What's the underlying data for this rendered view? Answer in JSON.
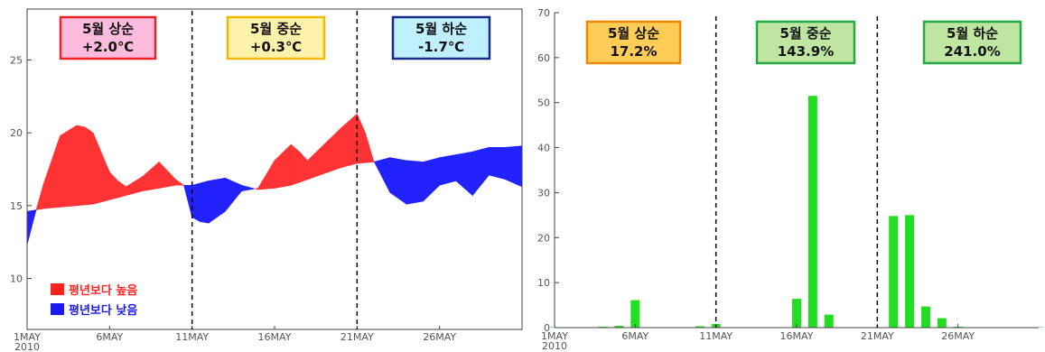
{
  "colors": {
    "above": "#ff3333",
    "below": "#2222ff",
    "bar": "#22dd22",
    "grid": "#000000"
  },
  "chart_data": [
    {
      "type": "area",
      "title": "",
      "xlabel": "",
      "ylabel": "",
      "ylim": [
        6.5,
        28.5
      ],
      "yticks": [
        10,
        15,
        20,
        25
      ],
      "xticks": [
        "1MAY",
        "6MAY",
        "11MAY",
        "16MAY",
        "21MAY",
        "26MAY"
      ],
      "year_label": "2010",
      "day_range": [
        1,
        31
      ],
      "series": [
        {
          "role": "observed",
          "x": [
            1,
            1.5,
            2,
            3,
            4,
            4.5,
            5,
            6,
            6.5,
            7,
            8,
            9,
            10,
            10.5,
            11,
            11.5,
            12,
            13,
            14,
            15,
            16,
            17,
            17.5,
            18,
            19,
            20,
            21,
            21.5,
            22,
            23,
            24,
            25,
            26,
            27,
            28,
            29,
            30,
            31
          ],
          "values": [
            12.3,
            14.5,
            16.5,
            19.8,
            20.5,
            20.4,
            20.0,
            17.3,
            16.7,
            16.3,
            17.0,
            18.0,
            16.8,
            16.4,
            14.2,
            13.9,
            13.8,
            14.6,
            16.0,
            16.2,
            18.1,
            19.2,
            18.7,
            18.1,
            19.2,
            20.3,
            21.3,
            20.0,
            18.1,
            15.9,
            15.1,
            15.3,
            16.4,
            16.7,
            15.7,
            17.1,
            16.8,
            16.3
          ]
        },
        {
          "role": "normal",
          "x": [
            1,
            2,
            3,
            4,
            5,
            6,
            7,
            8,
            9,
            10,
            11,
            12,
            13,
            14,
            15,
            16,
            17,
            18,
            19,
            20,
            21,
            22,
            23,
            24,
            25,
            26,
            27,
            28,
            29,
            30,
            31
          ],
          "values": [
            14.6,
            14.8,
            14.9,
            15.0,
            15.1,
            15.4,
            15.7,
            16.0,
            16.2,
            16.4,
            16.4,
            16.7,
            16.9,
            16.4,
            16.1,
            16.2,
            16.4,
            16.8,
            17.2,
            17.6,
            17.9,
            18.0,
            18.3,
            18.1,
            18.0,
            18.3,
            18.5,
            18.7,
            19.0,
            19.0,
            19.1
          ]
        }
      ],
      "dividers": [
        11,
        21
      ],
      "periods": [
        {
          "label": "5월 상순",
          "value": "+2.0℃",
          "bg": "#ffbbdd",
          "border": "#ee2222"
        },
        {
          "label": "5월 중순",
          "value": "+0.3℃",
          "bg": "#fff2aa",
          "border": "#f2b800"
        },
        {
          "label": "5월 하순",
          "value": "-1.7℃",
          "bg": "#bff0ff",
          "border": "#1a2a88"
        }
      ],
      "legend": [
        {
          "text": "평년보다 높음",
          "color": "#ff2222"
        },
        {
          "text": "평년보다 낮음",
          "color": "#1a1aee"
        }
      ]
    },
    {
      "type": "bar",
      "title": "",
      "xlabel": "",
      "ylabel": "",
      "ylim": [
        0,
        70
      ],
      "yticks": [
        0,
        10,
        20,
        30,
        40,
        50,
        60,
        70
      ],
      "xticks": [
        "1MAY",
        "6MAY",
        "11MAY",
        "16MAY",
        "21MAY",
        "26MAY"
      ],
      "year_label": "2010",
      "day_range": [
        1,
        31
      ],
      "x": [
        1,
        2,
        3,
        4,
        5,
        6,
        7,
        8,
        9,
        10,
        11,
        12,
        13,
        14,
        15,
        16,
        17,
        18,
        19,
        20,
        21,
        22,
        23,
        24,
        25,
        26,
        27,
        28,
        29,
        30,
        31
      ],
      "values": [
        0.1,
        0.1,
        0.1,
        0.2,
        0.4,
        6.1,
        0,
        0,
        0,
        0.3,
        0.8,
        0,
        0,
        0,
        0,
        6.4,
        51.5,
        2.9,
        0,
        0,
        0,
        24.8,
        25.0,
        4.7,
        2.1,
        0.2,
        0,
        0,
        0,
        0,
        0.1
      ],
      "dividers": [
        11,
        21
      ],
      "periods": [
        {
          "label": "5월 상순",
          "value": "17.2%",
          "bg": "#ffcc55",
          "border": "#ee8800"
        },
        {
          "label": "5월 중순",
          "value": "143.9%",
          "bg": "#bfe6a0",
          "border": "#22aa44"
        },
        {
          "label": "5월 하순",
          "value": "241.0%",
          "bg": "#bfe6a0",
          "border": "#22aa44"
        }
      ]
    }
  ]
}
